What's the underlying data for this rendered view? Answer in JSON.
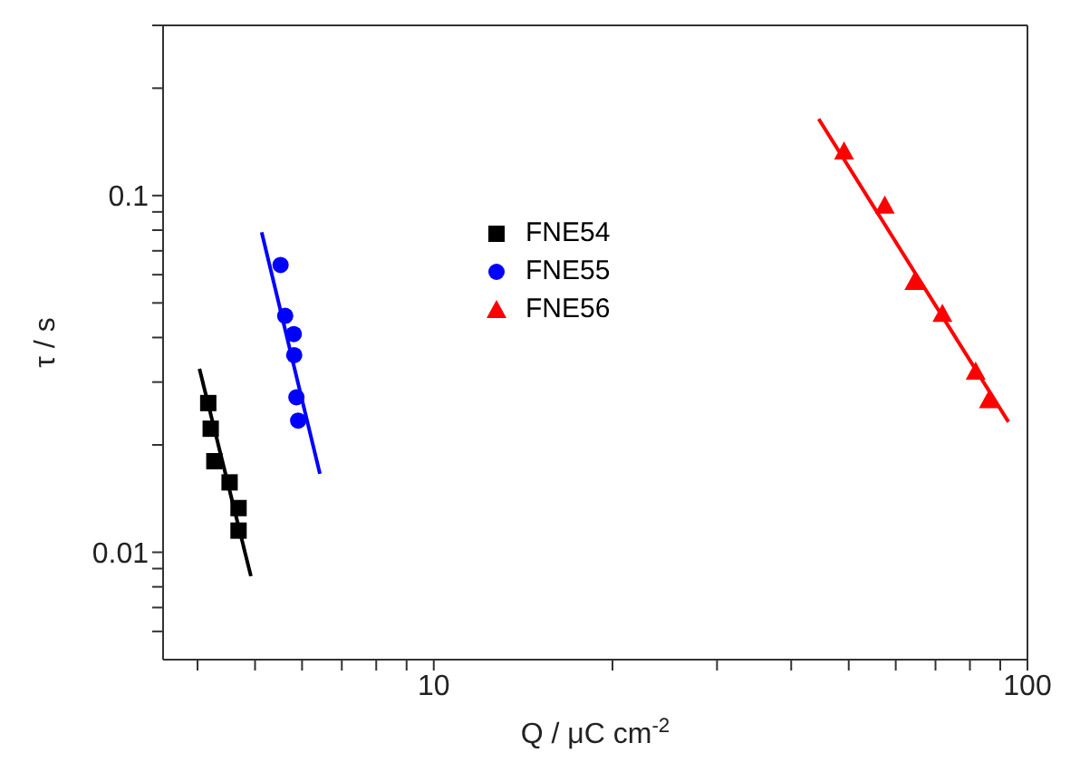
{
  "chart_data": {
    "type": "scatter",
    "xlabel": "Q / μC cm$^{-2}$",
    "ylabel": "τ / s",
    "log": "xy",
    "grid": false,
    "legend": "top",
    "xlim": [
      3.5,
      100
    ],
    "xticks": [
      {
        "value": 4,
        "label": null
      },
      {
        "value": 5,
        "label": null
      },
      {
        "value": 6,
        "label": null
      },
      {
        "value": 7,
        "label": null
      },
      {
        "value": 8,
        "label": null
      },
      {
        "value": 9,
        "label": null
      },
      10,
      {
        "value": 20,
        "label": null
      },
      {
        "value": 30,
        "label": null
      },
      {
        "value": 40,
        "label": null
      },
      {
        "value": 50,
        "label": null
      },
      {
        "value": 60,
        "label": null
      },
      {
        "value": 70,
        "label": null
      },
      {
        "value": 80,
        "label": null
      },
      {
        "value": 90,
        "label": null
      },
      100
    ],
    "ylim": [
      0.005,
      0.3
    ],
    "yticks": [
      {
        "value": 0.006,
        "label": null
      },
      {
        "value": 0.007,
        "label": null
      },
      {
        "value": 0.008,
        "label": null
      },
      {
        "value": 0.009,
        "label": null
      },
      0.01,
      {
        "value": 0.02,
        "label": null
      },
      {
        "value": 0.03,
        "label": null
      },
      {
        "value": 0.04,
        "label": null
      },
      {
        "value": 0.05,
        "label": null
      },
      {
        "value": 0.06,
        "label": null
      },
      {
        "value": 0.07,
        "label": null
      },
      {
        "value": 0.08,
        "label": null
      },
      {
        "value": 0.09,
        "label": null
      },
      0.1,
      {
        "value": 0.2,
        "label": null
      },
      {
        "value": 0.3,
        "label": null
      }
    ],
    "series": [
      {
        "name": "FNE54",
        "color": "#000000",
        "marker": "square",
        "x": [
          4.17,
          4.21,
          4.27,
          4.53,
          4.69,
          4.69
        ],
        "values": [
          0.0262,
          0.0222,
          0.018,
          0.0157,
          0.0133,
          0.0115
        ]
      },
      {
        "name": "FNE55",
        "color": "#0000ff",
        "marker": "circle",
        "x": [
          5.52,
          5.62,
          5.81,
          5.82,
          5.87,
          5.91
        ],
        "values": [
          0.0639,
          0.046,
          0.0409,
          0.0357,
          0.0272,
          0.0234
        ]
      },
      {
        "name": "FNE56",
        "color": "#ff0000",
        "marker": "triangle",
        "x": [
          49.1,
          57.5,
          64.5,
          71.9,
          81.8,
          86.1
        ],
        "values": [
          0.133,
          0.0938,
          0.0573,
          0.0466,
          0.0321,
          0.0267
        ]
      },
      {
        "type": "line",
        "color": "#000000",
        "x": [
          4.03,
          4.92
        ],
        "values": [
          0.0327,
          0.00857
        ]
      },
      {
        "type": "line",
        "color": "#0000ff",
        "x": [
          5.13,
          6.43
        ],
        "values": [
          0.0789,
          0.0166
        ]
      },
      {
        "type": "line",
        "color": "#ff0000",
        "x": [
          44.5,
          92.9
        ],
        "values": [
          0.164,
          0.0232
        ]
      }
    ]
  }
}
